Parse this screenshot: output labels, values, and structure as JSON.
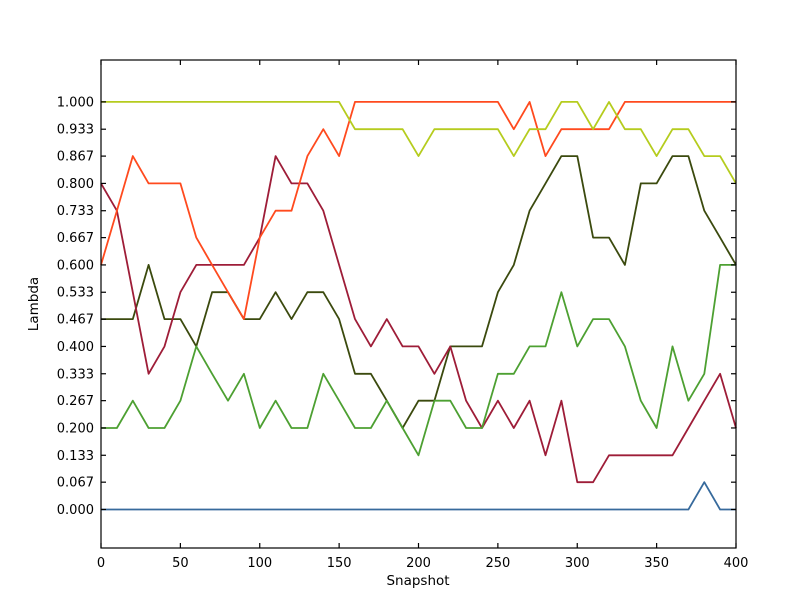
{
  "figure": {
    "background": "#ffffff",
    "frame_color": "#000000"
  },
  "chart_data": {
    "type": "line",
    "title": "",
    "xlabel": "Snapshot",
    "ylabel": "Lambda",
    "xlim": [
      0,
      400
    ],
    "ylim": [
      -0.0945,
      1.1028
    ],
    "grid": false,
    "legend": "none",
    "x_ticks": [
      0,
      50,
      100,
      150,
      200,
      250,
      300,
      350,
      400
    ],
    "y_ticks": [
      0.0,
      0.067,
      0.133,
      0.2,
      0.267,
      0.333,
      0.4,
      0.467,
      0.533,
      0.6,
      0.667,
      0.733,
      0.8,
      0.867,
      0.933,
      1.0
    ],
    "y_tick_labels": [
      "0.000",
      "0.067",
      "0.133",
      "0.200",
      "0.267",
      "0.333",
      "0.400",
      "0.467",
      "0.533",
      "0.600",
      "0.667",
      "0.733",
      "0.800",
      "0.867",
      "0.933",
      "1.000"
    ],
    "sampling_note": "values estimated from plot, sampled every 10 snapshots; levels quantized to multiples of 1/15",
    "x": [
      0,
      10,
      20,
      30,
      40,
      50,
      60,
      70,
      80,
      90,
      100,
      110,
      120,
      130,
      140,
      150,
      160,
      170,
      180,
      190,
      200,
      210,
      220,
      230,
      240,
      250,
      260,
      270,
      280,
      290,
      300,
      310,
      320,
      330,
      340,
      350,
      360,
      370,
      380,
      390,
      400
    ],
    "series": [
      {
        "name": "dark-olive",
        "color": "#3b4a0e",
        "values": [
          0.467,
          0.467,
          0.467,
          0.6,
          0.467,
          0.467,
          0.4,
          0.533,
          0.533,
          0.467,
          0.467,
          0.533,
          0.467,
          0.533,
          0.533,
          0.467,
          0.333,
          0.333,
          0.267,
          0.2,
          0.267,
          0.267,
          0.4,
          0.4,
          0.4,
          0.533,
          0.6,
          0.733,
          0.8,
          0.867,
          0.867,
          0.667,
          0.667,
          0.6,
          0.8,
          0.8,
          0.867,
          0.867,
          0.733,
          0.667,
          0.6
        ]
      },
      {
        "name": "dark-red",
        "color": "#9e1d38",
        "values": [
          0.8,
          0.733,
          0.533,
          0.333,
          0.4,
          0.533,
          0.6,
          0.6,
          0.6,
          0.6,
          0.667,
          0.867,
          0.8,
          0.8,
          0.733,
          0.6,
          0.467,
          0.4,
          0.467,
          0.4,
          0.4,
          0.333,
          0.4,
          0.267,
          0.2,
          0.267,
          0.2,
          0.267,
          0.133,
          0.267,
          0.067,
          0.067,
          0.133,
          0.133,
          0.133,
          0.133,
          0.133,
          0.2,
          0.267,
          0.333,
          0.2
        ]
      },
      {
        "name": "green",
        "color": "#4da032",
        "values": [
          0.2,
          0.2,
          0.267,
          0.2,
          0.2,
          0.267,
          0.4,
          0.333,
          0.267,
          0.333,
          0.2,
          0.267,
          0.2,
          0.2,
          0.333,
          0.267,
          0.2,
          0.2,
          0.267,
          0.2,
          0.133,
          0.267,
          0.267,
          0.2,
          0.2,
          0.333,
          0.333,
          0.4,
          0.4,
          0.533,
          0.4,
          0.467,
          0.467,
          0.4,
          0.267,
          0.2,
          0.4,
          0.267,
          0.333,
          0.6,
          0.6
        ]
      },
      {
        "name": "orange-red",
        "color": "#ff4a1e",
        "values": [
          0.6,
          0.733,
          0.867,
          0.8,
          0.8,
          0.8,
          0.667,
          0.6,
          0.533,
          0.467,
          0.667,
          0.733,
          0.733,
          0.867,
          0.933,
          0.867,
          1.0,
          1.0,
          1.0,
          1.0,
          1.0,
          1.0,
          1.0,
          1.0,
          1.0,
          1.0,
          0.933,
          1.0,
          0.867,
          0.933,
          0.933,
          0.933,
          0.933,
          1.0,
          1.0,
          1.0,
          1.0,
          1.0,
          1.0,
          1.0,
          1.0
        ]
      },
      {
        "name": "yellow-green",
        "color": "#b5cc1e",
        "values": [
          1.0,
          1.0,
          1.0,
          1.0,
          1.0,
          1.0,
          1.0,
          1.0,
          1.0,
          1.0,
          1.0,
          1.0,
          1.0,
          1.0,
          1.0,
          1.0,
          0.933,
          0.933,
          0.933,
          0.933,
          0.867,
          0.933,
          0.933,
          0.933,
          0.933,
          0.933,
          0.867,
          0.933,
          0.933,
          1.0,
          1.0,
          0.933,
          1.0,
          0.933,
          0.933,
          0.867,
          0.933,
          0.933,
          0.867,
          0.867,
          0.8
        ]
      },
      {
        "name": "steel-blue",
        "color": "#376a9c",
        "values": [
          0,
          0,
          0,
          0,
          0,
          0,
          0,
          0,
          0,
          0,
          0,
          0,
          0,
          0,
          0,
          0,
          0,
          0,
          0,
          0,
          0,
          0,
          0,
          0,
          0,
          0,
          0,
          0,
          0,
          0,
          0,
          0,
          0,
          0,
          0,
          0,
          0,
          0,
          0.067,
          0,
          0
        ]
      }
    ]
  }
}
